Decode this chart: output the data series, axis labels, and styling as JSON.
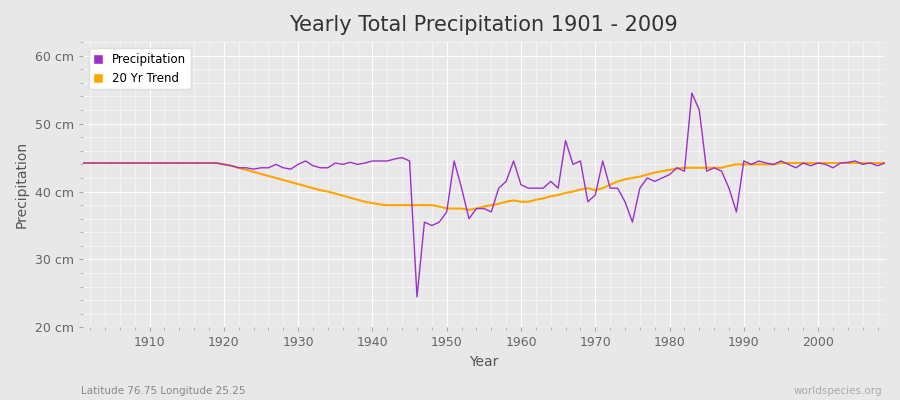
{
  "title": "Yearly Total Precipitation 1901 - 2009",
  "ylabel": "Precipitation",
  "xlabel": "Year",
  "bottom_left_label": "Latitude 76.75 Longitude 25.25",
  "bottom_right_label": "worldspecies.org",
  "ylim": [
    20,
    62
  ],
  "yticks": [
    20,
    30,
    40,
    50,
    60
  ],
  "ytick_labels": [
    "20 cm",
    "30 cm",
    "40 cm",
    "50 cm",
    "60 cm"
  ],
  "xlim": [
    1901,
    2009
  ],
  "years": [
    1901,
    1902,
    1903,
    1904,
    1905,
    1906,
    1907,
    1908,
    1909,
    1910,
    1911,
    1912,
    1913,
    1914,
    1915,
    1916,
    1917,
    1918,
    1919,
    1920,
    1921,
    1922,
    1923,
    1924,
    1925,
    1926,
    1927,
    1928,
    1929,
    1930,
    1931,
    1932,
    1933,
    1934,
    1935,
    1936,
    1937,
    1938,
    1939,
    1940,
    1941,
    1942,
    1943,
    1944,
    1945,
    1946,
    1947,
    1948,
    1949,
    1950,
    1951,
    1952,
    1953,
    1954,
    1955,
    1956,
    1957,
    1958,
    1959,
    1960,
    1961,
    1962,
    1963,
    1964,
    1965,
    1966,
    1967,
    1968,
    1969,
    1970,
    1971,
    1972,
    1973,
    1974,
    1975,
    1976,
    1977,
    1978,
    1979,
    1980,
    1981,
    1982,
    1983,
    1984,
    1985,
    1986,
    1987,
    1988,
    1989,
    1990,
    1991,
    1992,
    1993,
    1994,
    1995,
    1996,
    1997,
    1998,
    1999,
    2000,
    2001,
    2002,
    2003,
    2004,
    2005,
    2006,
    2007,
    2008,
    2009
  ],
  "precipitation": [
    44.2,
    44.2,
    44.2,
    44.2,
    44.2,
    44.2,
    44.2,
    44.2,
    44.2,
    44.2,
    44.2,
    44.2,
    44.2,
    44.2,
    44.2,
    44.2,
    44.2,
    44.2,
    44.2,
    44.0,
    43.8,
    43.5,
    43.5,
    43.3,
    43.5,
    43.5,
    44.0,
    43.5,
    43.3,
    44.0,
    44.5,
    43.8,
    43.5,
    43.5,
    44.2,
    44.0,
    44.3,
    44.0,
    44.2,
    44.5,
    44.5,
    44.5,
    44.8,
    45.0,
    44.5,
    24.5,
    35.5,
    35.0,
    35.5,
    37.0,
    44.5,
    40.5,
    36.0,
    37.5,
    37.5,
    37.0,
    40.5,
    41.5,
    44.5,
    41.0,
    40.5,
    40.5,
    40.5,
    41.5,
    40.5,
    47.5,
    44.0,
    44.5,
    38.5,
    39.5,
    44.5,
    40.5,
    40.5,
    38.5,
    35.5,
    40.5,
    42.0,
    41.5,
    42.0,
    42.5,
    43.5,
    43.0,
    54.5,
    52.0,
    43.0,
    43.5,
    43.0,
    40.5,
    37.0,
    44.5,
    44.0,
    44.5,
    44.2,
    44.0,
    44.5,
    44.0,
    43.5,
    44.2,
    43.8,
    44.2,
    44.0,
    43.5,
    44.2,
    44.3,
    44.5,
    44.0,
    44.2,
    43.8,
    44.2
  ],
  "trend": [
    44.2,
    44.2,
    44.2,
    44.2,
    44.2,
    44.2,
    44.2,
    44.2,
    44.2,
    44.2,
    44.2,
    44.2,
    44.2,
    44.2,
    44.2,
    44.2,
    44.2,
    44.2,
    44.2,
    44.0,
    43.8,
    43.5,
    43.2,
    42.9,
    42.6,
    42.3,
    42.0,
    41.7,
    41.4,
    41.1,
    40.8,
    40.5,
    40.2,
    40.0,
    39.7,
    39.4,
    39.1,
    38.8,
    38.5,
    38.3,
    38.1,
    38.0,
    38.0,
    38.0,
    38.0,
    38.0,
    38.0,
    38.0,
    37.8,
    37.5,
    37.5,
    37.5,
    37.3,
    37.5,
    37.8,
    38.0,
    38.2,
    38.5,
    38.7,
    38.5,
    38.5,
    38.8,
    39.0,
    39.3,
    39.5,
    39.8,
    40.0,
    40.3,
    40.5,
    40.2,
    40.5,
    41.0,
    41.5,
    41.8,
    42.0,
    42.2,
    42.5,
    42.8,
    43.0,
    43.2,
    43.4,
    43.5,
    43.5,
    43.5,
    43.5,
    43.5,
    43.5,
    43.8,
    44.0,
    44.0,
    44.0,
    44.0,
    44.0,
    44.0,
    44.2,
    44.2,
    44.2,
    44.2,
    44.2,
    44.2,
    44.2,
    44.2,
    44.2,
    44.2,
    44.2,
    44.2,
    44.2,
    44.2,
    44.2
  ],
  "precip_color": "#9B30CC",
  "trend_color": "#FFA500",
  "bg_color": "#E8E8E8",
  "plot_bg_color": "#E8E8E8",
  "grid_color": "#FFFFFF",
  "title_fontsize": 15,
  "axis_label_fontsize": 10,
  "tick_fontsize": 9
}
